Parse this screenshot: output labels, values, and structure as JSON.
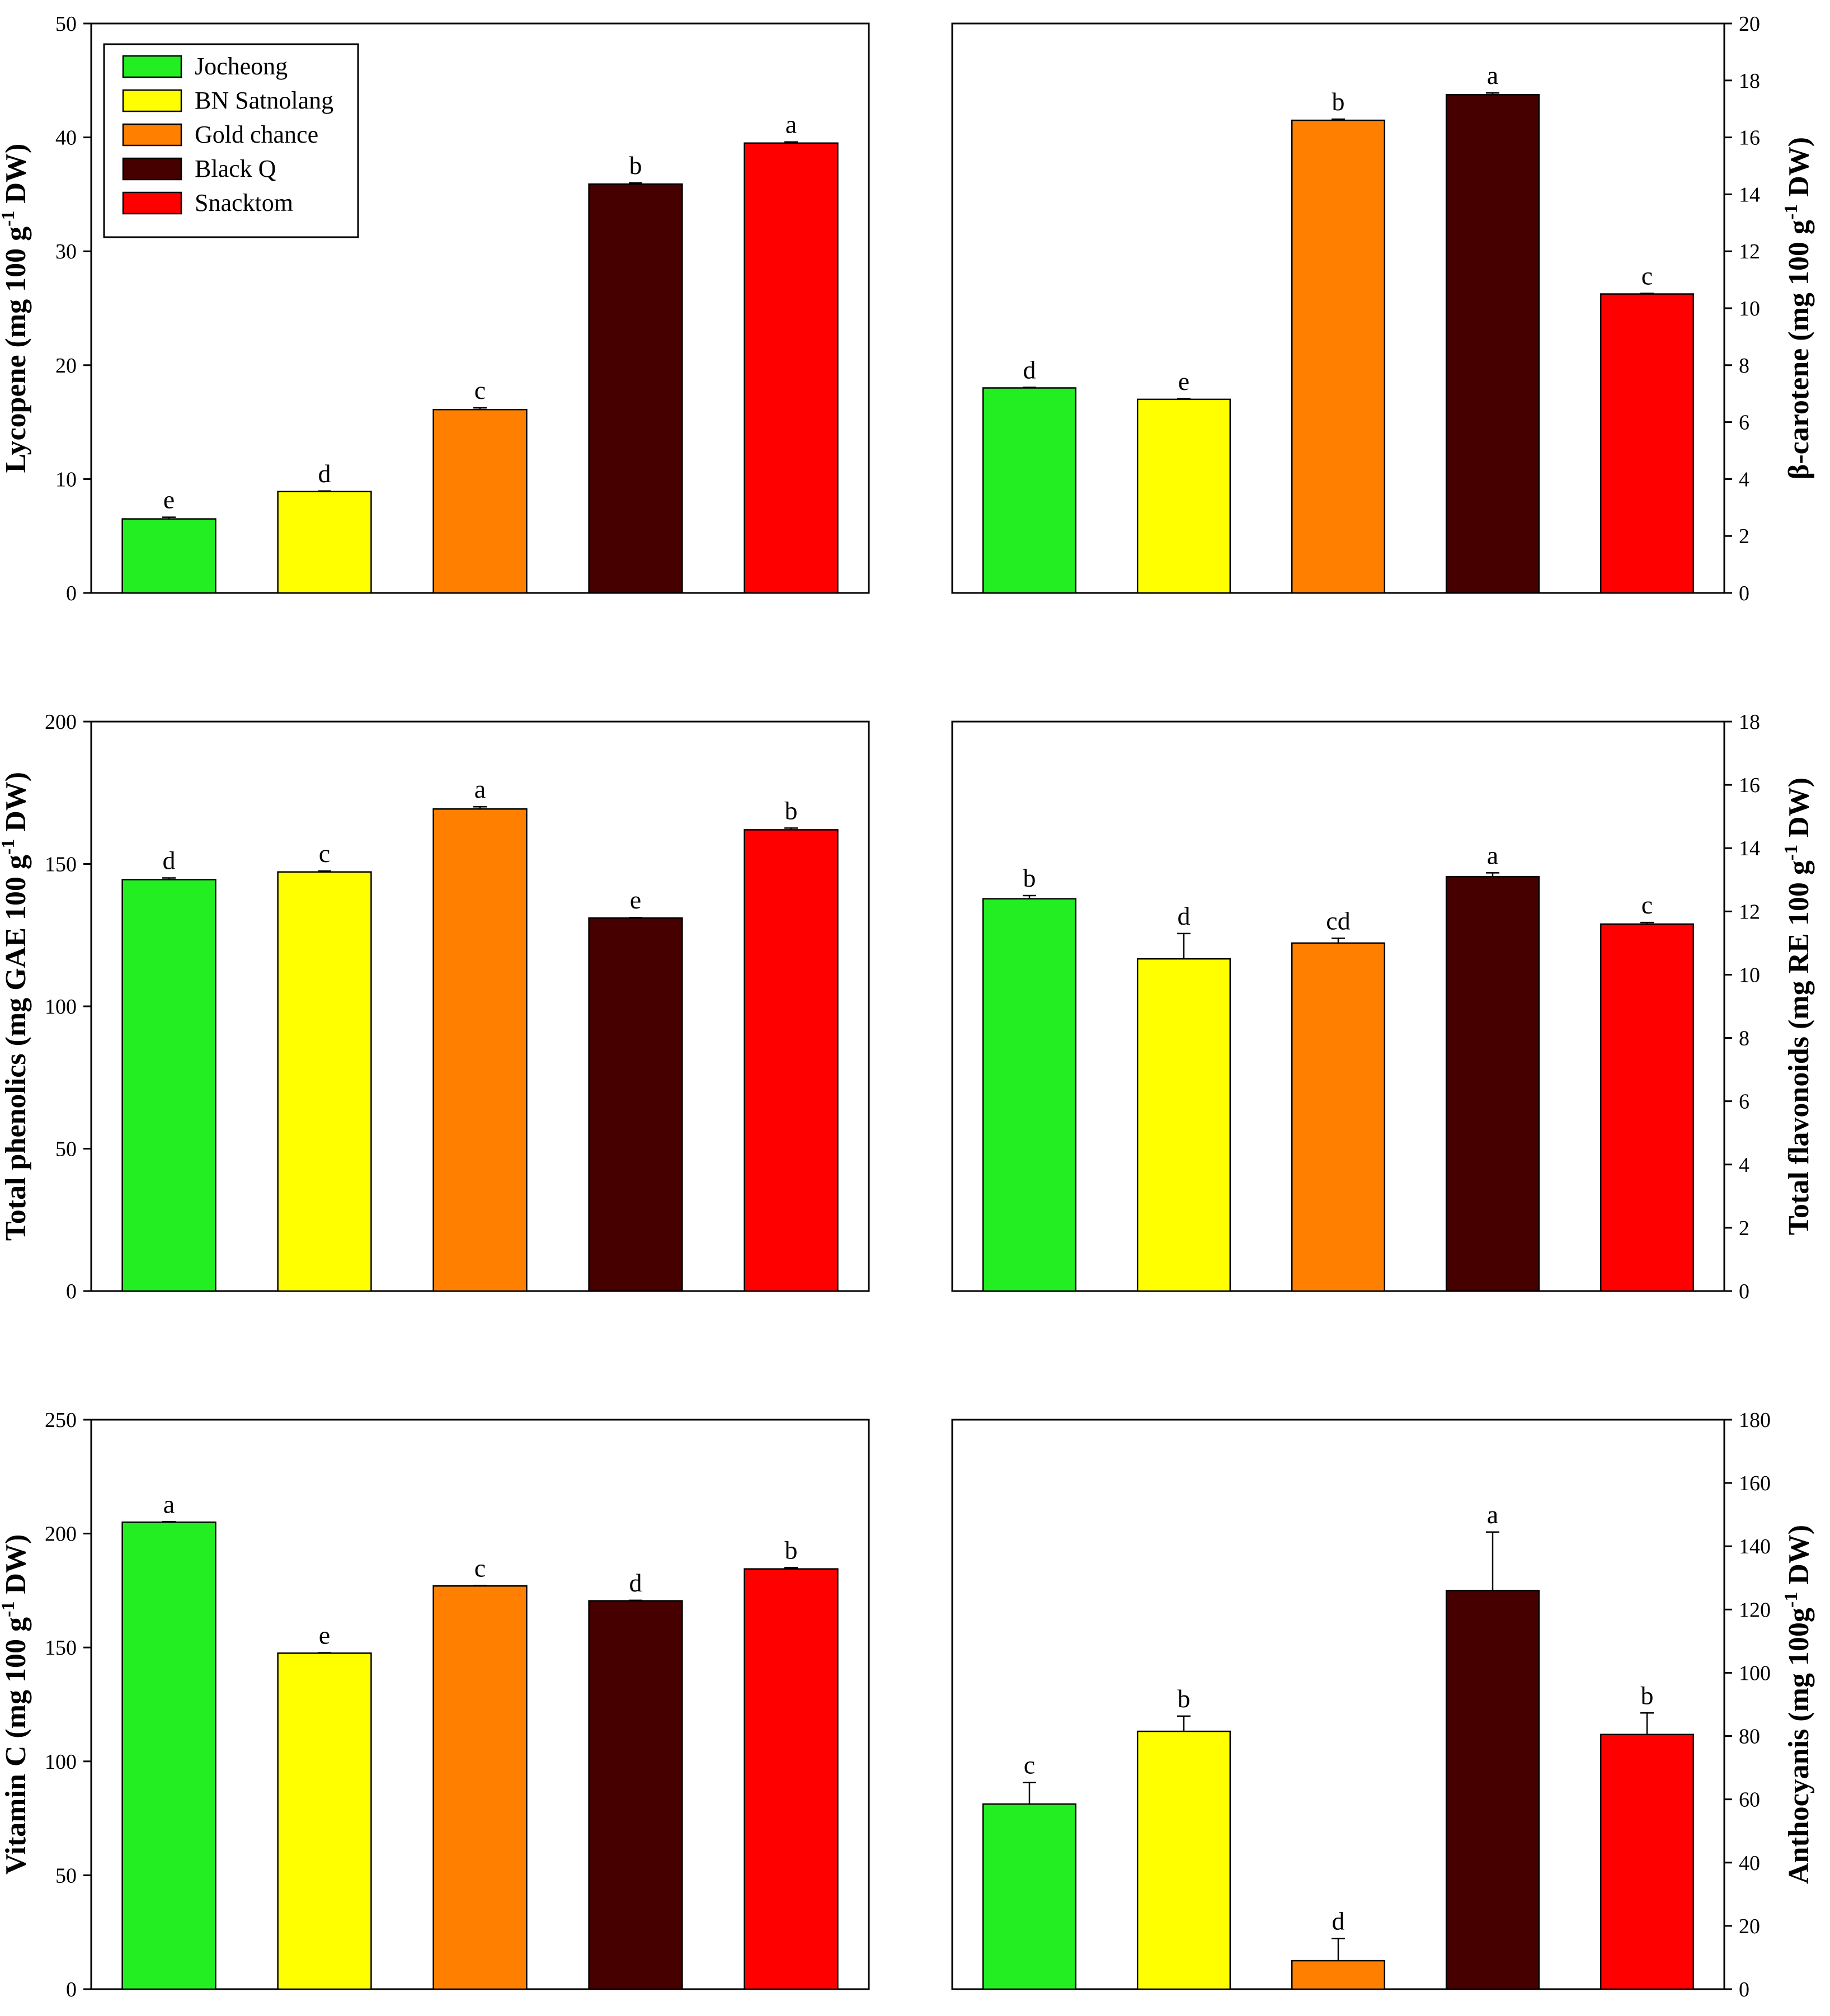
{
  "legend": {
    "items": [
      {
        "name": "Jocheong",
        "color": "#22ee22"
      },
      {
        "name": "BN Satnolang",
        "color": "#ffff00"
      },
      {
        "name": "Gold chance",
        "color": "#ff8000"
      },
      {
        "name": "Black Q",
        "color": "#470000"
      },
      {
        "name": "Snacktom",
        "color": "#ff0000"
      }
    ]
  },
  "chart_data": [
    {
      "id": "lycopene",
      "type": "bar",
      "ylabel_main": "Lycopene (mg 100 g",
      "ylabel_sup": "-1",
      "ylabel_tail": " DW)",
      "axis_side": "left",
      "ylim": [
        0,
        50
      ],
      "yticks": [
        0,
        10,
        20,
        30,
        40,
        50
      ],
      "categories": [
        "Jocheong",
        "BN Satnolang",
        "Gold chance",
        "Black Q",
        "Snacktom"
      ],
      "values": [
        6.5,
        8.9,
        16.1,
        35.9,
        39.5
      ],
      "errors": [
        0.15,
        0.05,
        0.15,
        0.1,
        0.1
      ],
      "letters": [
        "e",
        "d",
        "c",
        "b",
        "a"
      ]
    },
    {
      "id": "beta-carotene",
      "type": "bar",
      "ylabel_main": "β-carotene (mg 100 g",
      "ylabel_sup": "-1",
      "ylabel_tail": " DW)",
      "axis_side": "right",
      "ylim": [
        0,
        20
      ],
      "yticks": [
        0,
        2,
        4,
        6,
        8,
        10,
        12,
        14,
        16,
        18,
        20
      ],
      "categories": [
        "Jocheong",
        "BN Satnolang",
        "Gold chance",
        "Black Q",
        "Snacktom"
      ],
      "values": [
        7.2,
        6.8,
        16.6,
        17.5,
        10.5
      ],
      "errors": [
        0.02,
        0.02,
        0.04,
        0.06,
        0.02
      ],
      "letters": [
        "d",
        "e",
        "b",
        "a",
        "c"
      ]
    },
    {
      "id": "total-phenolics",
      "type": "bar",
      "ylabel_main": "Total phenolics (mg GAE 100 g",
      "ylabel_sup": "-1",
      "ylabel_tail": " DW)",
      "axis_side": "left",
      "ylim": [
        0,
        200
      ],
      "yticks": [
        0,
        50,
        100,
        150,
        200
      ],
      "categories": [
        "Jocheong",
        "BN Satnolang",
        "Gold chance",
        "Black Q",
        "Snacktom"
      ],
      "values": [
        144.5,
        147.2,
        169.3,
        131.0,
        162.0
      ],
      "errors": [
        0.6,
        0.3,
        0.8,
        0.2,
        0.6
      ],
      "letters": [
        "d",
        "c",
        "a",
        "e",
        "b"
      ]
    },
    {
      "id": "total-flavonoids",
      "type": "bar",
      "ylabel_main": "Total flavonoids (mg RE 100 g",
      "ylabel_sup": "-1",
      "ylabel_tail": " DW)",
      "axis_side": "right",
      "ylim": [
        0,
        18
      ],
      "yticks": [
        0,
        2,
        4,
        6,
        8,
        10,
        12,
        14,
        16,
        18
      ],
      "categories": [
        "Jocheong",
        "BN Satnolang",
        "Gold chance",
        "Black Q",
        "Snacktom"
      ],
      "values": [
        12.4,
        10.5,
        11.0,
        13.1,
        11.6
      ],
      "errors": [
        0.1,
        0.8,
        0.15,
        0.12,
        0.05
      ],
      "letters": [
        "b",
        "d",
        "cd",
        "a",
        "c"
      ]
    },
    {
      "id": "vitamin-c",
      "type": "bar",
      "ylabel_main": "Vitamin C (mg 100 g",
      "ylabel_sup": "-1",
      "ylabel_tail": " DW)",
      "axis_side": "left",
      "ylim": [
        0,
        250
      ],
      "yticks": [
        0,
        50,
        100,
        150,
        200,
        250
      ],
      "categories": [
        "Jocheong",
        "BN Satnolang",
        "Gold chance",
        "Black Q",
        "Snacktom"
      ],
      "values": [
        205.0,
        147.5,
        177.0,
        170.5,
        184.5
      ],
      "errors": [
        0.2,
        0.2,
        0.2,
        0.2,
        0.6
      ],
      "letters": [
        "a",
        "e",
        "c",
        "d",
        "b"
      ]
    },
    {
      "id": "anthocyanins",
      "type": "bar",
      "ylabel_main": "Anthocyanis (mg 100g",
      "ylabel_sup": "-1",
      "ylabel_tail": " DW)",
      "axis_side": "right",
      "ylim": [
        0,
        180
      ],
      "yticks": [
        0,
        20,
        40,
        60,
        80,
        100,
        120,
        140,
        160,
        180
      ],
      "categories": [
        "Jocheong",
        "BN Satnolang",
        "Gold chance",
        "Black Q",
        "Snacktom"
      ],
      "values": [
        58.5,
        81.5,
        9.0,
        126.0,
        80.5
      ],
      "errors": [
        6.8,
        4.8,
        7.0,
        18.5,
        6.8
      ],
      "letters": [
        "c",
        "b",
        "d",
        "a",
        "b"
      ]
    }
  ]
}
